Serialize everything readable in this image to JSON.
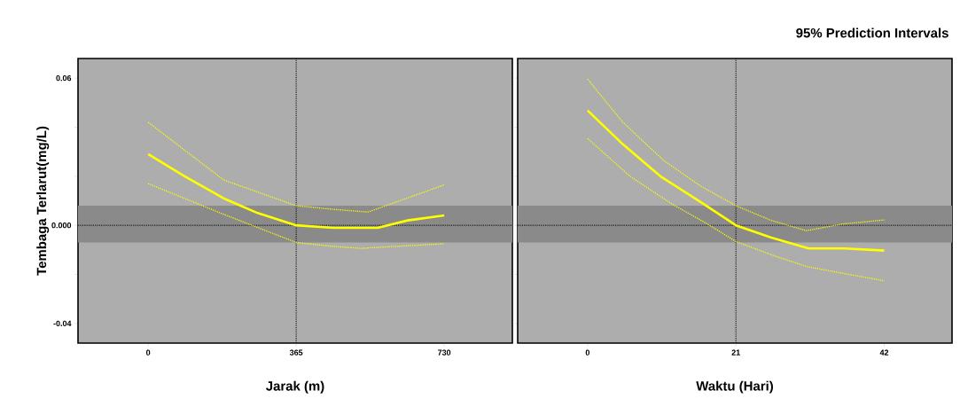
{
  "chart_data": [
    {
      "type": "line",
      "ylabel": "Tembaga Terlarut(mg/L)",
      "xlabel": "Jarak (m)",
      "xlim": [
        -173,
        898
      ],
      "xticks": [
        0,
        365,
        730
      ],
      "ylim": [
        -0.048,
        0.068
      ],
      "yticks": [
        {
          "value": -0.04,
          "label": "-0.04"
        },
        {
          "value": -0.02,
          "label": null
        },
        {
          "value": 0,
          "label": "0.000"
        },
        {
          "value": 0.02,
          "label": null
        },
        {
          "value": 0.04,
          "label": null
        },
        0.06
      ],
      "ref_lines": [
        {
          "axis": "y",
          "value": 0,
          "color": "#000000",
          "line_style": "dotted"
        },
        {
          "axis": "x",
          "value": 365,
          "color": "#000000",
          "line_style": "dotted"
        }
      ],
      "bands": [
        {
          "axis": "y",
          "from": -0.007,
          "to": 0.008,
          "color": "#8a8a8a"
        }
      ],
      "series": [
        {
          "color": "#ffff00",
          "line_style": "solid",
          "x": [
            0,
            90,
            186,
            270,
            365,
            457,
            566,
            640,
            730
          ],
          "values": [
            0.029,
            0.02,
            0.011,
            0.005,
            0.0,
            -0.001,
            -0.001,
            0.002,
            0.004
          ]
        },
        {
          "color": "#ffff00",
          "line_style": "dotted",
          "x": [
            0,
            186,
            365,
            457,
            542,
            730
          ],
          "values": [
            0.042,
            0.0185,
            0.008,
            0.0065,
            0.0054,
            0.0165
          ]
        },
        {
          "color": "#ffff00",
          "line_style": "dotted",
          "x": [
            0,
            186,
            365,
            457,
            524,
            730
          ],
          "values": [
            0.017,
            0.0045,
            -0.007,
            -0.0086,
            -0.0094,
            -0.0075
          ]
        }
      ]
    },
    {
      "type": "line",
      "title": "95% Prediction Intervals",
      "xlabel": "Waktu (Hari)",
      "xlim": [
        -9.9,
        51.6
      ],
      "xticks": [
        0,
        21,
        42
      ],
      "ylim": [
        -0.048,
        0.068
      ],
      "yticks": [
        -0.04,
        -0.02,
        0,
        0.02,
        0.04,
        0.06
      ],
      "tick_labels": "x",
      "ref_lines": [
        {
          "axis": "y",
          "value": 0,
          "color": "#000000",
          "line_style": "dotted"
        },
        {
          "axis": "x",
          "value": 21,
          "color": "#000000",
          "line_style": "dotted"
        }
      ],
      "bands": [
        {
          "axis": "y",
          "from": -0.007,
          "to": 0.008,
          "color": "#8a8a8a"
        }
      ],
      "series": [
        {
          "color": "#ffff00",
          "line_style": "solid",
          "x": [
            0,
            5,
            10.3,
            16,
            21,
            26,
            31.3,
            36.4,
            42
          ],
          "values": [
            0.0468,
            0.033,
            0.02,
            0.0095,
            0.0,
            -0.005,
            -0.0094,
            -0.0094,
            -0.0103
          ]
        },
        {
          "color": "#ffff00",
          "line_style": "dotted",
          "x": [
            0,
            5,
            10.7,
            16,
            21,
            26,
            31,
            36,
            42
          ],
          "values": [
            0.0596,
            0.042,
            0.0266,
            0.016,
            0.008,
            0.002,
            -0.0022,
            0.0005,
            0.0022
          ]
        },
        {
          "color": "#ffff00",
          "line_style": "dotted",
          "x": [
            0,
            6,
            12,
            17,
            21,
            26,
            31,
            36,
            42
          ],
          "values": [
            0.0354,
            0.02,
            0.0086,
            0.0005,
            -0.0066,
            -0.012,
            -0.0168,
            -0.0195,
            -0.0226
          ]
        }
      ]
    }
  ]
}
